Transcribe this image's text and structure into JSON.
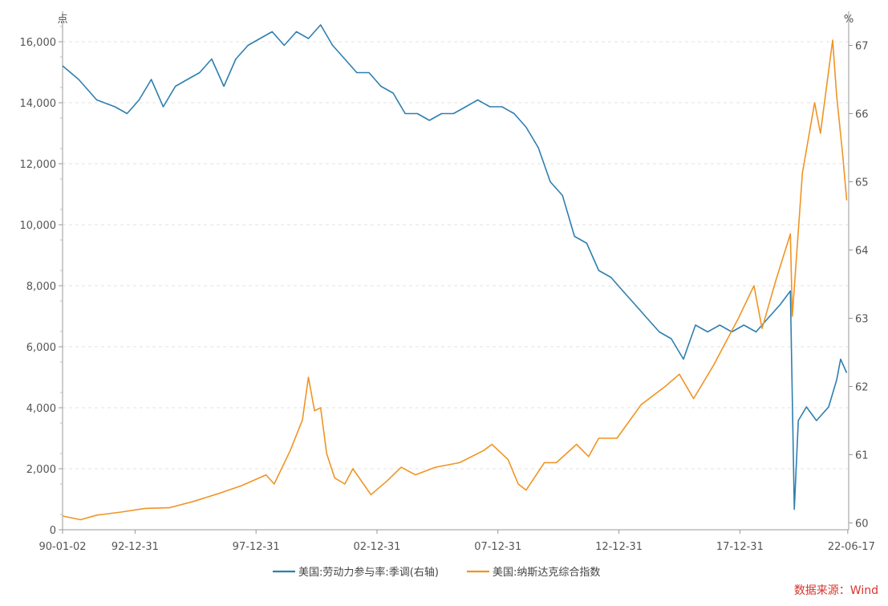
{
  "chart_data": {
    "type": "line",
    "x_type": "date",
    "x_ticks": [
      "90-01-02",
      "92-12-31",
      "97-12-31",
      "02-12-31",
      "07-12-31",
      "12-12-31",
      "17-12-31",
      "22-06-17"
    ],
    "y_left": {
      "unit": "点",
      "range": [
        0,
        17000
      ],
      "ticks": [
        0,
        2000,
        4000,
        6000,
        8000,
        10000,
        12000,
        14000,
        16000
      ],
      "tick_labels": [
        "0",
        "2,000",
        "4,000",
        "6,000",
        "8,000",
        "10,000",
        "12,000",
        "14,000",
        "16,000"
      ]
    },
    "y_right": {
      "unit": "%",
      "range": [
        59.9,
        67.5
      ],
      "ticks": [
        60,
        61,
        62,
        63,
        64,
        65,
        66,
        67
      ],
      "tick_labels": [
        "60",
        "61",
        "62",
        "63",
        "64",
        "65",
        "66",
        "67"
      ]
    },
    "grid": "horizontal dashed",
    "legend_position": "bottom",
    "series": [
      {
        "name": "美国:劳动力参与率:季调(右轴)",
        "axis": "right",
        "color": "#2e7fb0",
        "points": [
          [
            "1990-01-01",
            66.7
          ],
          [
            "1990-09-01",
            66.5
          ],
          [
            "1991-06-01",
            66.2
          ],
          [
            "1992-03-01",
            66.1
          ],
          [
            "1992-09-01",
            66.0
          ],
          [
            "1993-03-01",
            66.2
          ],
          [
            "1993-09-01",
            66.5
          ],
          [
            "1994-03-01",
            66.1
          ],
          [
            "1994-09-01",
            66.4
          ],
          [
            "1995-03-01",
            66.5
          ],
          [
            "1995-09-01",
            66.6
          ],
          [
            "1996-03-01",
            66.8
          ],
          [
            "1996-09-01",
            66.4
          ],
          [
            "1997-03-01",
            66.8
          ],
          [
            "1997-09-01",
            67.0
          ],
          [
            "1998-03-01",
            67.1
          ],
          [
            "1998-09-01",
            67.2
          ],
          [
            "1999-03-01",
            67.0
          ],
          [
            "1999-09-01",
            67.2
          ],
          [
            "2000-03-01",
            67.1
          ],
          [
            "2000-09-01",
            67.3
          ],
          [
            "2001-03-01",
            67.0
          ],
          [
            "2001-09-01",
            66.8
          ],
          [
            "2002-03-01",
            66.6
          ],
          [
            "2002-09-01",
            66.6
          ],
          [
            "2003-03-01",
            66.4
          ],
          [
            "2003-09-01",
            66.3
          ],
          [
            "2004-03-01",
            66.0
          ],
          [
            "2004-09-01",
            66.0
          ],
          [
            "2005-03-01",
            65.9
          ],
          [
            "2005-09-01",
            66.0
          ],
          [
            "2006-03-01",
            66.0
          ],
          [
            "2006-09-01",
            66.1
          ],
          [
            "2007-03-01",
            66.2
          ],
          [
            "2007-09-01",
            66.1
          ],
          [
            "2008-03-01",
            66.1
          ],
          [
            "2008-09-01",
            66.0
          ],
          [
            "2009-03-01",
            65.8
          ],
          [
            "2009-09-01",
            65.5
          ],
          [
            "2010-03-01",
            65.0
          ],
          [
            "2010-09-01",
            64.8
          ],
          [
            "2011-03-01",
            64.2
          ],
          [
            "2011-09-01",
            64.1
          ],
          [
            "2012-03-01",
            63.7
          ],
          [
            "2012-09-01",
            63.6
          ],
          [
            "2013-03-01",
            63.4
          ],
          [
            "2013-09-01",
            63.2
          ],
          [
            "2014-03-01",
            63.0
          ],
          [
            "2014-09-01",
            62.8
          ],
          [
            "2015-03-01",
            62.7
          ],
          [
            "2015-09-01",
            62.4
          ],
          [
            "2016-03-01",
            62.9
          ],
          [
            "2016-09-01",
            62.8
          ],
          [
            "2017-03-01",
            62.9
          ],
          [
            "2017-09-01",
            62.8
          ],
          [
            "2018-03-01",
            62.9
          ],
          [
            "2018-09-01",
            62.8
          ],
          [
            "2019-03-01",
            63.0
          ],
          [
            "2019-09-01",
            63.2
          ],
          [
            "2020-02-01",
            63.4
          ],
          [
            "2020-04-01",
            60.2
          ],
          [
            "2020-06-01",
            61.5
          ],
          [
            "2020-10-01",
            61.7
          ],
          [
            "2021-03-01",
            61.5
          ],
          [
            "2021-09-01",
            61.7
          ],
          [
            "2022-01-01",
            62.1
          ],
          [
            "2022-03-01",
            62.4
          ],
          [
            "2022-06-01",
            62.2
          ]
        ]
      },
      {
        "name": "美国:纳斯达克综合指数",
        "axis": "left",
        "color": "#f09423",
        "points": [
          [
            "1990-01-01",
            450
          ],
          [
            "1990-10-01",
            330
          ],
          [
            "1991-06-01",
            480
          ],
          [
            "1992-06-01",
            580
          ],
          [
            "1993-06-01",
            700
          ],
          [
            "1994-06-01",
            720
          ],
          [
            "1995-06-01",
            930
          ],
          [
            "1996-06-01",
            1180
          ],
          [
            "1997-06-01",
            1450
          ],
          [
            "1998-06-01",
            1800
          ],
          [
            "1998-10-01",
            1500
          ],
          [
            "1999-06-01",
            2600
          ],
          [
            "1999-12-01",
            3600
          ],
          [
            "2000-03-01",
            5000
          ],
          [
            "2000-06-01",
            3900
          ],
          [
            "2000-09-01",
            4000
          ],
          [
            "2000-12-01",
            2500
          ],
          [
            "2001-04-01",
            1700
          ],
          [
            "2001-09-01",
            1500
          ],
          [
            "2002-01-01",
            2000
          ],
          [
            "2002-10-01",
            1150
          ],
          [
            "2003-06-01",
            1600
          ],
          [
            "2004-01-01",
            2050
          ],
          [
            "2004-08-01",
            1800
          ],
          [
            "2005-06-01",
            2050
          ],
          [
            "2006-06-01",
            2200
          ],
          [
            "2007-06-01",
            2600
          ],
          [
            "2007-10-01",
            2800
          ],
          [
            "2008-06-01",
            2300
          ],
          [
            "2008-11-01",
            1500
          ],
          [
            "2009-03-01",
            1300
          ],
          [
            "2009-12-01",
            2200
          ],
          [
            "2010-06-01",
            2200
          ],
          [
            "2011-04-01",
            2800
          ],
          [
            "2011-10-01",
            2400
          ],
          [
            "2012-03-01",
            3000
          ],
          [
            "2012-12-01",
            3000
          ],
          [
            "2013-12-01",
            4100
          ],
          [
            "2014-12-01",
            4700
          ],
          [
            "2015-07-01",
            5100
          ],
          [
            "2016-02-01",
            4300
          ],
          [
            "2016-12-01",
            5400
          ],
          [
            "2017-12-01",
            6900
          ],
          [
            "2018-08-01",
            8000
          ],
          [
            "2018-12-01",
            6600
          ],
          [
            "2019-07-01",
            8200
          ],
          [
            "2020-02-01",
            9700
          ],
          [
            "2020-03-01",
            7000
          ],
          [
            "2020-08-01",
            11700
          ],
          [
            "2021-02-01",
            14000
          ],
          [
            "2021-05-01",
            13000
          ],
          [
            "2021-11-01",
            16050
          ],
          [
            "2022-01-01",
            14200
          ],
          [
            "2022-04-01",
            12300
          ],
          [
            "2022-06-01",
            10800
          ]
        ]
      }
    ]
  },
  "source_note": "数据来源：Wind"
}
